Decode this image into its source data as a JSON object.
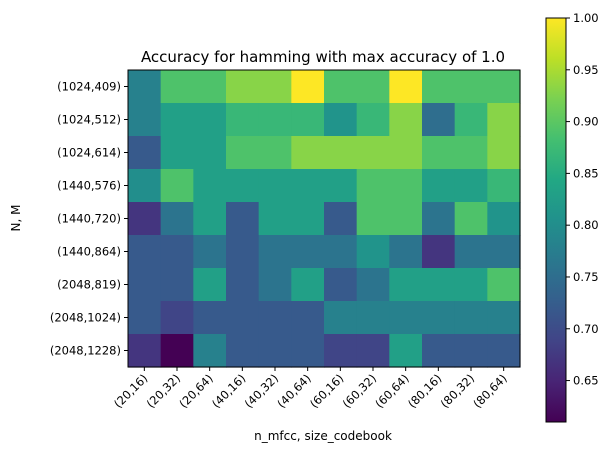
{
  "chart_data": {
    "type": "heatmap",
    "title": "Accuracy for hamming with max accuracy of 1.0",
    "xlabel": "n_mfcc, size_codebook",
    "ylabel": "N, M",
    "x_categories": [
      "(20,16)",
      "(20,32)",
      "(20,64)",
      "(40,16)",
      "(40,32)",
      "(40,64)",
      "(60,16)",
      "(60,32)",
      "(60,64)",
      "(80,16)",
      "(80,32)",
      "(80,64)"
    ],
    "y_categories": [
      "(1024,409)",
      "(1024,512)",
      "(1024,614)",
      "(1440,576)",
      "(1440,720)",
      "(1440,864)",
      "(2048,819)",
      "(2048,1024)",
      "(2048,1228)"
    ],
    "values": [
      [
        0.78,
        0.89,
        0.89,
        0.93,
        0.93,
        1.0,
        0.89,
        0.89,
        1.0,
        0.89,
        0.89,
        0.89
      ],
      [
        0.78,
        0.83,
        0.83,
        0.87,
        0.87,
        0.87,
        0.81,
        0.87,
        0.93,
        0.75,
        0.87,
        0.93
      ],
      [
        0.72,
        0.83,
        0.83,
        0.89,
        0.89,
        0.93,
        0.93,
        0.93,
        0.93,
        0.89,
        0.89,
        0.93
      ],
      [
        0.8,
        0.89,
        0.83,
        0.83,
        0.83,
        0.83,
        0.83,
        0.89,
        0.89,
        0.83,
        0.83,
        0.87
      ],
      [
        0.67,
        0.76,
        0.83,
        0.72,
        0.83,
        0.83,
        0.72,
        0.89,
        0.89,
        0.76,
        0.89,
        0.81
      ],
      [
        0.72,
        0.72,
        0.76,
        0.72,
        0.76,
        0.76,
        0.76,
        0.81,
        0.76,
        0.67,
        0.76,
        0.76
      ],
      [
        0.72,
        0.72,
        0.83,
        0.72,
        0.76,
        0.83,
        0.72,
        0.76,
        0.83,
        0.83,
        0.83,
        0.89
      ],
      [
        0.72,
        0.69,
        0.72,
        0.72,
        0.72,
        0.72,
        0.78,
        0.78,
        0.78,
        0.78,
        0.78,
        0.78
      ],
      [
        0.67,
        0.61,
        0.78,
        0.72,
        0.72,
        0.72,
        0.69,
        0.69,
        0.83,
        0.72,
        0.72,
        0.72
      ]
    ],
    "colorbar": {
      "vmin": 0.61,
      "vmax": 1.0,
      "ticks": [
        "0.65",
        "0.70",
        "0.75",
        "0.80",
        "0.85",
        "0.90",
        "0.95",
        "1.00"
      ],
      "colormap": "viridis"
    },
    "grid": false
  }
}
